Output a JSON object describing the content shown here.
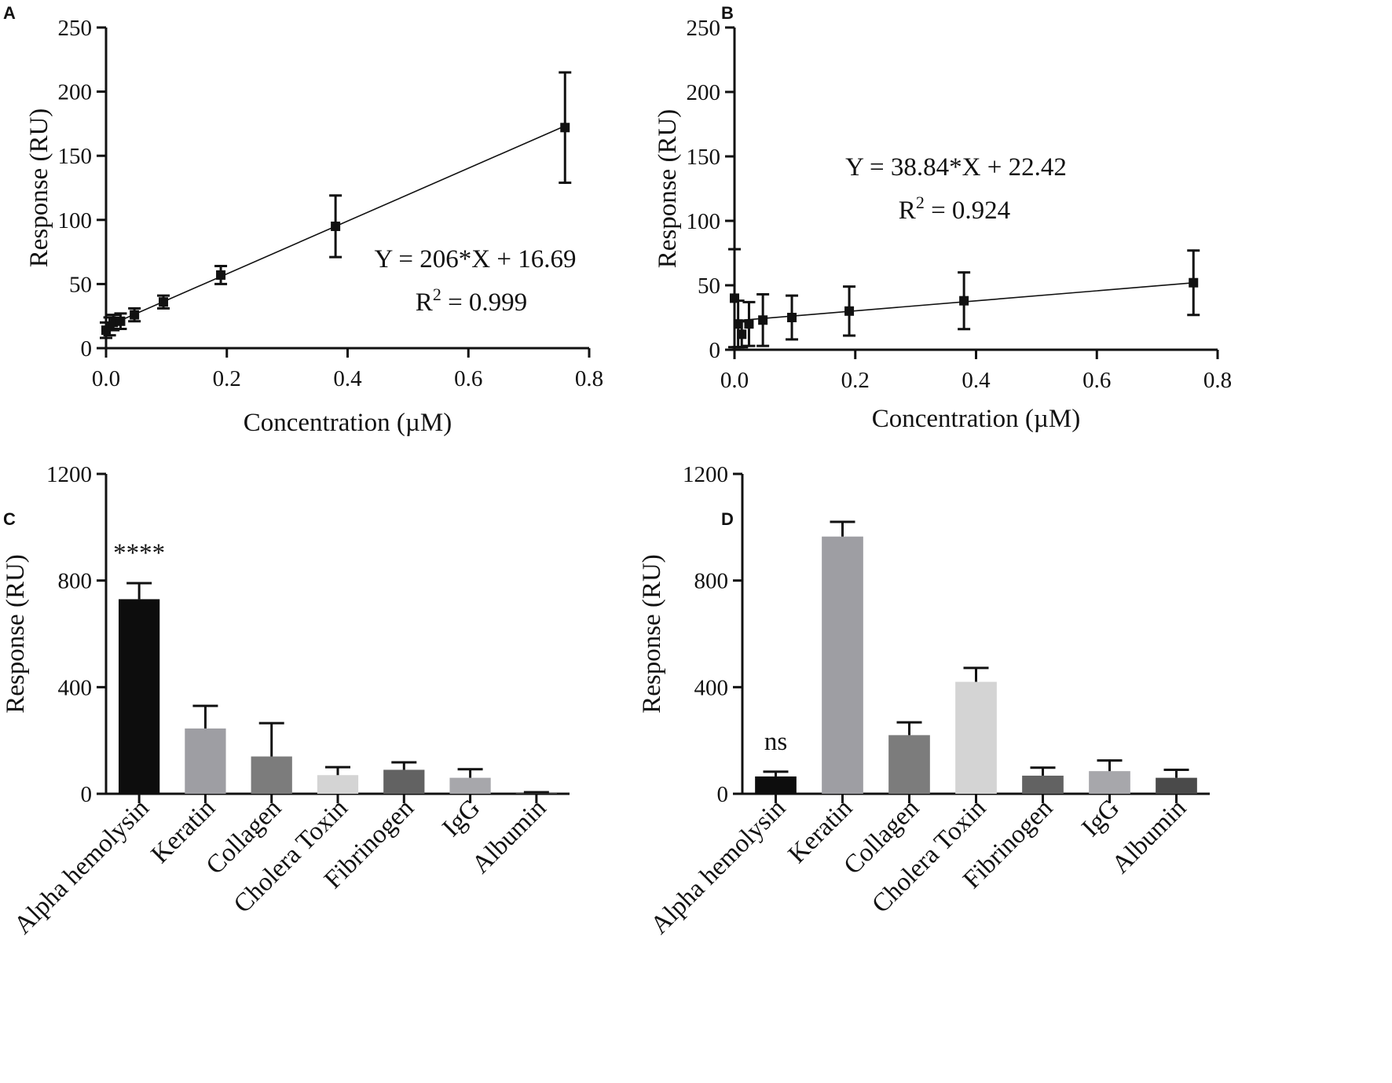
{
  "figure": {
    "panels": [
      "A",
      "B",
      "C",
      "D"
    ]
  },
  "chart_data": [
    {
      "panel": "A",
      "type": "scatter",
      "x": [
        0.0,
        0.006,
        0.012,
        0.024,
        0.047,
        0.095,
        0.19,
        0.38,
        0.76
      ],
      "y": [
        14,
        17,
        20,
        21,
        26,
        36,
        57,
        95,
        172
      ],
      "error": [
        6,
        7,
        6,
        6,
        5,
        5,
        7,
        24,
        43
      ],
      "fit": {
        "slope": 206,
        "intercept": 16.69
      },
      "equation": "Y = 206*X + 16.69",
      "r2_label": "R",
      "r2_sup": "2",
      "r2_value": " = 0.999",
      "xlabel": "Concentration (µM)",
      "ylabel": "Response (RU)",
      "xlim": [
        0,
        0.8
      ],
      "ylim": [
        0,
        250
      ],
      "xticks": [
        "0.0",
        "0.2",
        "0.4",
        "0.6",
        "0.8"
      ],
      "yticks": [
        "0",
        "50",
        "100",
        "150",
        "200",
        "250"
      ]
    },
    {
      "panel": "B",
      "type": "scatter",
      "x": [
        0.0,
        0.006,
        0.012,
        0.024,
        0.047,
        0.095,
        0.19,
        0.38,
        0.76
      ],
      "y": [
        40,
        20,
        12,
        20,
        23,
        25,
        30,
        38,
        52
      ],
      "error": [
        38,
        18,
        10,
        17,
        20,
        17,
        19,
        22,
        25
      ],
      "fit": {
        "slope": 38.84,
        "intercept": 22.42
      },
      "equation": "Y = 38.84*X + 22.42",
      "r2_label": "R",
      "r2_sup": "2",
      "r2_value": " = 0.924",
      "xlabel": "Concentration (µM)",
      "ylabel": "Response (RU)",
      "xlim": [
        0,
        0.8
      ],
      "ylim": [
        0,
        250
      ],
      "xticks": [
        "0.0",
        "0.2",
        "0.4",
        "0.6",
        "0.8"
      ],
      "yticks": [
        "0",
        "50",
        "100",
        "150",
        "200",
        "250"
      ]
    },
    {
      "panel": "C",
      "type": "bar",
      "categories": [
        "Alpha hemolysin",
        "Keratin",
        "Collagen",
        "Cholera Toxin",
        "Fibrinogen",
        "IgG",
        "Albumin"
      ],
      "values": [
        730,
        245,
        140,
        70,
        90,
        60,
        3
      ],
      "error": [
        60,
        85,
        125,
        30,
        28,
        32,
        3
      ],
      "colors": [
        "#0d0d0d",
        "#9e9ea3",
        "#7c7c7c",
        "#d4d4d4",
        "#626262",
        "#a7a7ab",
        "#4a4a4a"
      ],
      "annotation": {
        "category": "Alpha hemolysin",
        "text": "****"
      },
      "ylabel": "Response (RU)",
      "ylim": [
        0,
        1200
      ],
      "yticks": [
        "0",
        "400",
        "800",
        "1200"
      ]
    },
    {
      "panel": "D",
      "type": "bar",
      "categories": [
        "Alpha hemolysin",
        "Keratin",
        "Collagen",
        "Cholera Toxin",
        "Fibrinogen",
        "IgG",
        "Albumin"
      ],
      "values": [
        65,
        965,
        220,
        420,
        68,
        85,
        60
      ],
      "error": [
        18,
        55,
        48,
        52,
        30,
        40,
        30
      ],
      "colors": [
        "#0d0d0d",
        "#9e9ea3",
        "#7c7c7c",
        "#d4d4d4",
        "#626262",
        "#a7a7ab",
        "#4a4a4a"
      ],
      "annotation": {
        "category": "Alpha hemolysin",
        "text": "ns"
      },
      "ylabel": "Response (RU)",
      "ylim": [
        0,
        1200
      ],
      "yticks": [
        "0",
        "400",
        "800",
        "1200"
      ]
    }
  ]
}
